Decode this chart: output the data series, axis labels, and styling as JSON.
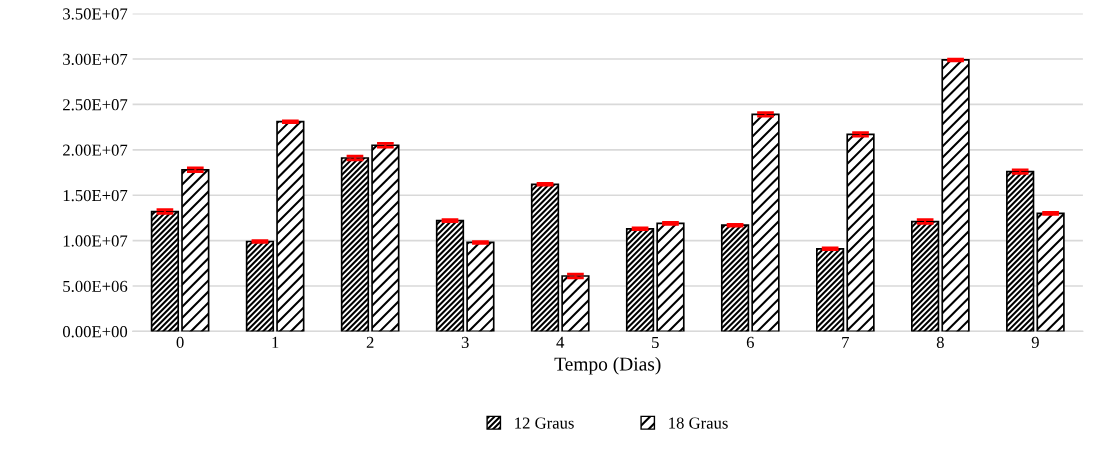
{
  "chart_data": {
    "type": "bar",
    "xlabel": "Tempo (Dias)",
    "categories": [
      "0",
      "1",
      "2",
      "3",
      "4",
      "5",
      "6",
      "7",
      "8",
      "9"
    ],
    "series": [
      {
        "name": "12 Graus",
        "color": "#000000",
        "values": [
          13200000,
          9900000,
          19100000,
          12200000,
          16200000,
          11300000,
          11700000,
          9100000,
          12100000,
          17600000
        ],
        "errors": [
          200000,
          100000,
          200000,
          100000,
          100000,
          100000,
          100000,
          100000,
          200000,
          200000
        ]
      },
      {
        "name": "18 Graus",
        "color": "#000000",
        "values": [
          17800000,
          23100000,
          20500000,
          9800000,
          6100000,
          11900000,
          23900000,
          21700000,
          29900000,
          13000000
        ],
        "errors": [
          200000,
          100000,
          200000,
          100000,
          200000,
          100000,
          200000,
          200000,
          100000,
          100000
        ]
      }
    ],
    "ylim": [
      0,
      35000000
    ],
    "yticks": [
      {
        "value": 0,
        "label": "0.00E+00"
      },
      {
        "value": 5000000,
        "label": "5.00E+06"
      },
      {
        "value": 10000000,
        "label": "1.00E+07"
      },
      {
        "value": 15000000,
        "label": "1.50E+07"
      },
      {
        "value": 20000000,
        "label": "2.00E+07"
      },
      {
        "value": 25000000,
        "label": "2.50E+07"
      },
      {
        "value": 30000000,
        "label": "3.00E+07"
      },
      {
        "value": 35000000,
        "label": "3.50E+07"
      }
    ],
    "grid": "y",
    "legend": "bottom"
  }
}
